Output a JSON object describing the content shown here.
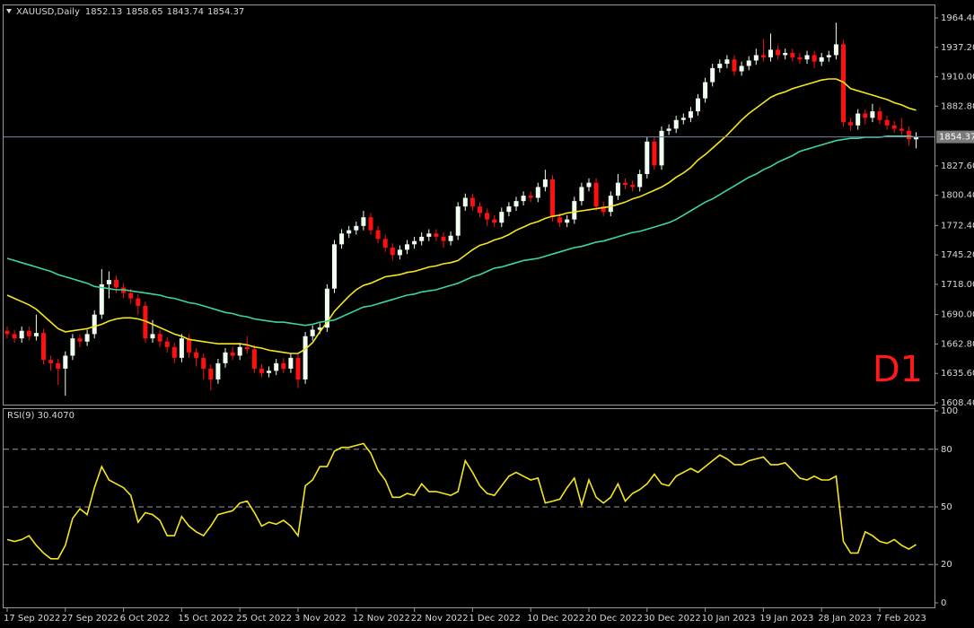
{
  "chart_data": [
    {
      "type": "candlestick",
      "title": "XAUUSD,Daily",
      "annotation": "D1",
      "categories": [
        "17 Sep 2022",
        null,
        null,
        null,
        null,
        null,
        null,
        null,
        "27 Sep 2022",
        null,
        null,
        null,
        null,
        null,
        null,
        null,
        "6 Oct 2022",
        null,
        null,
        null,
        null,
        null,
        null,
        null,
        "15 Oct 2022",
        null,
        null,
        null,
        null,
        null,
        null,
        null,
        "25 Oct 2022",
        null,
        null,
        null,
        null,
        null,
        null,
        null,
        "3 Nov 2022",
        null,
        null,
        null,
        null,
        null,
        null,
        null,
        "12 Nov 2022",
        null,
        null,
        null,
        null,
        null,
        null,
        null,
        "22 Nov 2022",
        null,
        null,
        null,
        null,
        null,
        null,
        null,
        "1 Dec 2022",
        null,
        null,
        null,
        null,
        null,
        null,
        null,
        "10 Dec 2022",
        null,
        null,
        null,
        null,
        null,
        null,
        null,
        "20 Dec 2022",
        null,
        null,
        null,
        null,
        null,
        null,
        null,
        "30 Dec 2022",
        null,
        null,
        null,
        null,
        null,
        null,
        null,
        "10 Jan 2023",
        null,
        null,
        null,
        null,
        null,
        null,
        null,
        "19 Jan 2023",
        null,
        null,
        null,
        null,
        null,
        null,
        null,
        "28 Jan 2023",
        null,
        null,
        null,
        null,
        null,
        null,
        null,
        "7 Feb 2023",
        null,
        null,
        null,
        null,
        null
      ],
      "open": [
        1675,
        1672,
        1668,
        1675,
        1670,
        1673,
        1648,
        1645,
        1640,
        1652,
        1668,
        1665,
        1672,
        1690,
        1718,
        1722,
        1715,
        1710,
        1705,
        1698,
        1668,
        1672,
        1665,
        1660,
        1650,
        1668,
        1655,
        1650,
        1640,
        1630,
        1645,
        1655,
        1652,
        1660,
        1658,
        1640,
        1636,
        1638,
        1645,
        1640,
        1650,
        1630,
        1670,
        1676,
        1678,
        1714,
        1755,
        1765,
        1768,
        1772,
        1780,
        1768,
        1760,
        1752,
        1745,
        1750,
        1755,
        1758,
        1762,
        1765,
        1762,
        1758,
        1763,
        1790,
        1798,
        1790,
        1784,
        1778,
        1775,
        1785,
        1790,
        1795,
        1800,
        1798,
        1808,
        1815,
        1780,
        1775,
        1778,
        1795,
        1808,
        1812,
        1790,
        1785,
        1800,
        1812,
        1810,
        1808,
        1820,
        1850,
        1828,
        1860,
        1862,
        1870,
        1872,
        1878,
        1890,
        1905,
        1918,
        1922,
        1926,
        1915,
        1920,
        1925,
        1930,
        1928,
        1935,
        1930,
        1932,
        1928,
        1926,
        1930,
        1924,
        1928,
        1930,
        1940,
        1868,
        1865,
        1876,
        1872,
        1878,
        1870,
        1865,
        1862,
        1860,
        1852.13
      ],
      "high": [
        1679,
        1676,
        1679,
        1679,
        1690,
        1677,
        1652,
        1649,
        1656,
        1672,
        1672,
        1676,
        1694,
        1732,
        1730,
        1726,
        1719,
        1714,
        1709,
        1702,
        1685,
        1676,
        1669,
        1664,
        1672,
        1672,
        1659,
        1654,
        1644,
        1649,
        1659,
        1660,
        1664,
        1670,
        1662,
        1644,
        1642,
        1649,
        1650,
        1654,
        1654,
        1674,
        1680,
        1682,
        1718,
        1759,
        1769,
        1772,
        1776,
        1786,
        1784,
        1772,
        1764,
        1756,
        1754,
        1759,
        1762,
        1766,
        1769,
        1769,
        1766,
        1767,
        1794,
        1802,
        1802,
        1794,
        1788,
        1782,
        1789,
        1794,
        1799,
        1804,
        1804,
        1812,
        1824,
        1819,
        1784,
        1782,
        1799,
        1812,
        1816,
        1816,
        1794,
        1804,
        1820,
        1816,
        1814,
        1824,
        1854,
        1854,
        1864,
        1866,
        1874,
        1876,
        1882,
        1894,
        1909,
        1922,
        1926,
        1930,
        1930,
        1924,
        1929,
        1936,
        1945,
        1950,
        1939,
        1936,
        1936,
        1932,
        1934,
        1934,
        1932,
        1934,
        1960,
        1944,
        1872,
        1880,
        1880,
        1885,
        1882,
        1874,
        1869,
        1872,
        1864,
        1858.65
      ],
      "low": [
        1668,
        1664,
        1664,
        1666,
        1666,
        1644,
        1638,
        1625,
        1615,
        1648,
        1660,
        1661,
        1668,
        1686,
        1705,
        1710,
        1705,
        1700,
        1690,
        1664,
        1664,
        1660,
        1655,
        1645,
        1646,
        1650,
        1642,
        1630,
        1620,
        1626,
        1641,
        1648,
        1648,
        1654,
        1636,
        1632,
        1632,
        1634,
        1636,
        1636,
        1622,
        1626,
        1666,
        1672,
        1674,
        1710,
        1751,
        1761,
        1764,
        1768,
        1764,
        1756,
        1748,
        1740,
        1741,
        1746,
        1751,
        1754,
        1758,
        1758,
        1752,
        1754,
        1759,
        1786,
        1786,
        1780,
        1772,
        1771,
        1771,
        1781,
        1786,
        1791,
        1794,
        1794,
        1804,
        1776,
        1771,
        1771,
        1774,
        1791,
        1804,
        1786,
        1781,
        1781,
        1796,
        1806,
        1804,
        1804,
        1816,
        1824,
        1824,
        1856,
        1858,
        1866,
        1868,
        1874,
        1886,
        1901,
        1914,
        1918,
        1911,
        1911,
        1916,
        1921,
        1924,
        1924,
        1926,
        1926,
        1924,
        1922,
        1922,
        1918,
        1920,
        1924,
        1926,
        1864,
        1860,
        1861,
        1866,
        1868,
        1866,
        1861,
        1858,
        1856,
        1846,
        1843.74
      ],
      "close": [
        1672,
        1668,
        1675,
        1670,
        1673,
        1648,
        1645,
        1640,
        1652,
        1668,
        1665,
        1672,
        1690,
        1718,
        1722,
        1715,
        1710,
        1705,
        1698,
        1668,
        1672,
        1665,
        1660,
        1650,
        1668,
        1655,
        1650,
        1640,
        1630,
        1645,
        1655,
        1652,
        1660,
        1658,
        1640,
        1636,
        1638,
        1645,
        1640,
        1650,
        1630,
        1670,
        1676,
        1678,
        1714,
        1755,
        1765,
        1768,
        1772,
        1780,
        1768,
        1760,
        1752,
        1745,
        1750,
        1755,
        1758,
        1762,
        1765,
        1762,
        1758,
        1763,
        1790,
        1798,
        1790,
        1784,
        1778,
        1775,
        1785,
        1790,
        1795,
        1800,
        1798,
        1808,
        1815,
        1780,
        1775,
        1778,
        1795,
        1808,
        1812,
        1790,
        1785,
        1800,
        1812,
        1810,
        1808,
        1820,
        1850,
        1828,
        1860,
        1862,
        1870,
        1872,
        1878,
        1890,
        1905,
        1918,
        1922,
        1926,
        1915,
        1920,
        1925,
        1930,
        1928,
        1935,
        1930,
        1932,
        1928,
        1926,
        1930,
        1924,
        1928,
        1930,
        1940,
        1868,
        1865,
        1876,
        1872,
        1878,
        1870,
        1865,
        1862,
        1860,
        1852.13,
        1854.37
      ],
      "up_color": "#f0fff0",
      "down_color": "#ff1010",
      "series": [
        {
          "color": "#f5e61e",
          "values": [
            1708,
            1705,
            1702,
            1699,
            1695,
            1689,
            1683,
            1677,
            1674,
            1675,
            1676,
            1677,
            1679,
            1681,
            1684,
            1686,
            1687,
            1687,
            1686,
            1684,
            1681,
            1678,
            1675,
            1672,
            1670,
            1667,
            1666,
            1665,
            1664,
            1663,
            1663,
            1663,
            1663,
            1662,
            1660,
            1659,
            1657,
            1656,
            1655,
            1654,
            1654,
            1658,
            1664,
            1674,
            1683,
            1693,
            1700,
            1707,
            1713,
            1717,
            1719,
            1722,
            1725,
            1726,
            1727,
            1729,
            1730,
            1732,
            1734,
            1735,
            1737,
            1738,
            1740,
            1745,
            1750,
            1754,
            1756,
            1759,
            1761,
            1764,
            1768,
            1771,
            1774,
            1776,
            1779,
            1781,
            1782,
            1784,
            1785,
            1786,
            1787,
            1788,
            1789,
            1790,
            1792,
            1794,
            1797,
            1799,
            1802,
            1805,
            1808,
            1812,
            1817,
            1821,
            1826,
            1833,
            1838,
            1844,
            1850,
            1856,
            1863,
            1870,
            1876,
            1881,
            1886,
            1891,
            1894,
            1896,
            1899,
            1901,
            1903,
            1905,
            1907,
            1908,
            1908,
            1905,
            1899,
            1897,
            1895,
            1893,
            1891,
            1889,
            1886,
            1884,
            1881,
            1879
          ]
        },
        {
          "color": "#3cd6a0",
          "values": [
            1742,
            1740,
            1738,
            1736,
            1734,
            1732,
            1730,
            1727,
            1725,
            1723,
            1721,
            1719,
            1716,
            1715,
            1714,
            1713,
            1713,
            1712,
            1711,
            1710,
            1709,
            1708,
            1706,
            1705,
            1703,
            1701,
            1700,
            1698,
            1696,
            1694,
            1692,
            1691,
            1689,
            1688,
            1686,
            1685,
            1684,
            1683,
            1683,
            1682,
            1681,
            1680,
            1681,
            1683,
            1684,
            1685,
            1688,
            1691,
            1694,
            1697,
            1698,
            1700,
            1702,
            1704,
            1706,
            1708,
            1709,
            1711,
            1712,
            1713,
            1715,
            1717,
            1719,
            1722,
            1725,
            1727,
            1730,
            1733,
            1734,
            1736,
            1738,
            1740,
            1741,
            1742,
            1744,
            1746,
            1748,
            1750,
            1752,
            1753,
            1755,
            1757,
            1758,
            1760,
            1762,
            1764,
            1766,
            1767,
            1769,
            1771,
            1773,
            1775,
            1778,
            1782,
            1786,
            1790,
            1794,
            1797,
            1801,
            1805,
            1809,
            1813,
            1817,
            1820,
            1824,
            1827,
            1831,
            1834,
            1837,
            1841,
            1843,
            1845,
            1847,
            1849,
            1851,
            1852,
            1853,
            1853,
            1854,
            1854,
            1854,
            1855,
            1855,
            1855,
            1855,
            1854
          ]
        }
      ],
      "ylim": [
        1608.4,
        1964.4
      ],
      "yticks": [
        {
          "value": 1964.4,
          "label": "1964.40"
        },
        {
          "value": 1937.2,
          "label": "1937.20"
        },
        {
          "value": 1910,
          "label": "1910.00"
        },
        {
          "value": 1882.8,
          "label": "1882.80"
        },
        {
          "value": 1827.6,
          "label": "1827.60"
        },
        {
          "value": 1800.4,
          "label": "1800.40"
        },
        {
          "value": 1772.4,
          "label": "1772.40"
        },
        {
          "value": 1745.2,
          "label": "1745.20"
        },
        {
          "value": 1718,
          "label": "1718.00"
        },
        {
          "value": 1690,
          "label": "1690.00"
        },
        {
          "value": 1662.8,
          "label": "1662.80"
        },
        {
          "value": 1635.6,
          "label": "1635.60"
        },
        {
          "value": 1608.4,
          "label": "1608.40"
        }
      ],
      "last_price_line": true,
      "grid": false
    },
    {
      "type": "line",
      "title": "RSI(9) 30.4070",
      "series": [
        {
          "color": "#f5e61e",
          "values": [
            33,
            32,
            33,
            35,
            30,
            26,
            23,
            23,
            30,
            44,
            49,
            46,
            60,
            71,
            64,
            62,
            60,
            56,
            42,
            47,
            46,
            43,
            35,
            35,
            45,
            40,
            37,
            35,
            40,
            46,
            47,
            48,
            52,
            53,
            47,
            40,
            42,
            41,
            43,
            40,
            35,
            61,
            64,
            71,
            71,
            79,
            81,
            81,
            82,
            83,
            78,
            69,
            64,
            55,
            55,
            57,
            56,
            62,
            58,
            58,
            57,
            56,
            58,
            74,
            68,
            61,
            57,
            56,
            61,
            66,
            68,
            66,
            64,
            65,
            52,
            53,
            54,
            60,
            65,
            51,
            64,
            55,
            52,
            55,
            62,
            53,
            57,
            59,
            62,
            67,
            62,
            61,
            66,
            68,
            70,
            68,
            71,
            74,
            77,
            75,
            72,
            72,
            74,
            75,
            76,
            72,
            72,
            73,
            69,
            65,
            64,
            66,
            64,
            64,
            66,
            32,
            26,
            26,
            37,
            35,
            32,
            31,
            33,
            30,
            28,
            30.407
          ]
        }
      ],
      "ylim": [
        0,
        100
      ],
      "yticks": [
        100,
        80,
        50,
        20,
        0
      ],
      "grid": "dashed"
    }
  ]
}
